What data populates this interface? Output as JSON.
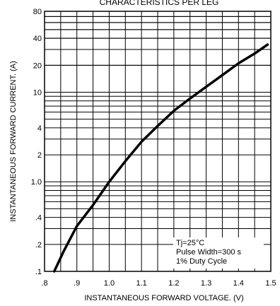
{
  "chart_data": {
    "type": "line",
    "title": "CHARACTERISTICS PER LEG",
    "xlabel": "INSTANTANEOUS FORWARD VOLTAGE. (V)",
    "ylabel": "INSTANTANEOUS FORWARD CURRENT. (A)",
    "x_scale": "linear",
    "y_scale": "log",
    "xlim": [
      0.8,
      1.5
    ],
    "ylim": [
      0.1,
      80
    ],
    "x_ticks": [
      0.8,
      0.9,
      1.0,
      1.1,
      1.2,
      1.3,
      1.4,
      1.5
    ],
    "x_tick_labels": [
      ".8",
      ".9",
      "1.0",
      "1.1",
      "1.2",
      "1.3",
      "1.4",
      "1.5"
    ],
    "y_ticks": [
      0.1,
      0.2,
      0.4,
      1,
      2,
      4,
      10,
      20,
      40,
      80
    ],
    "y_tick_labels": [
      ".1",
      ".2",
      ".4",
      "1.0",
      "2",
      "4",
      "10",
      "20",
      "40",
      "80"
    ],
    "grid": true,
    "series": [
      {
        "x": [
          0.83,
          0.86,
          0.9,
          0.95,
          1.0,
          1.05,
          1.1,
          1.15,
          1.2,
          1.25,
          1.3,
          1.35,
          1.4,
          1.45,
          1.49
        ],
        "y": [
          0.1,
          0.17,
          0.32,
          0.55,
          1.0,
          1.7,
          2.8,
          4.2,
          6.2,
          8.5,
          11.5,
          15.5,
          21,
          27,
          34
        ]
      }
    ],
    "annotation": {
      "lines": [
        "Tj=25°C",
        "Pulse Width=300  s",
        "1% Duty Cycle"
      ]
    }
  }
}
